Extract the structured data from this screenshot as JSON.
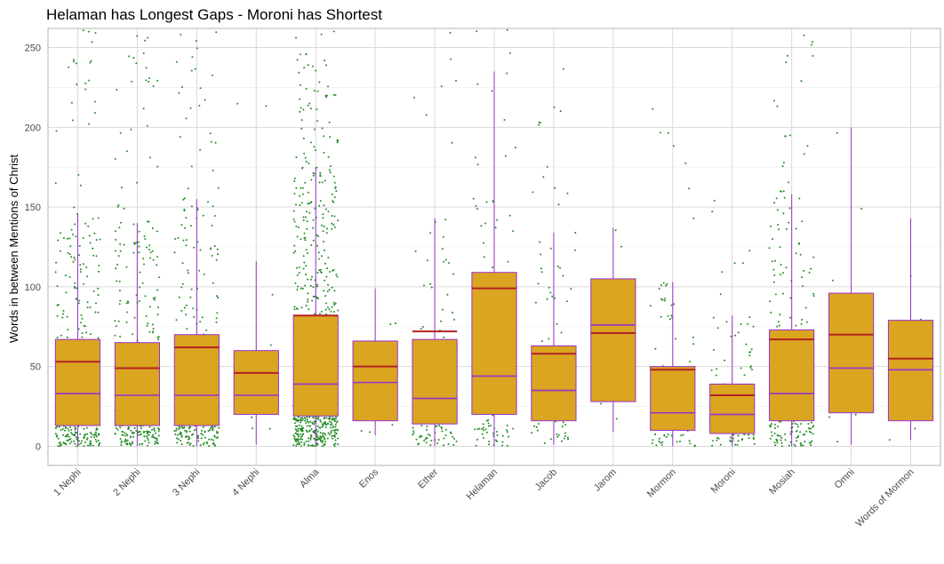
{
  "chart_data": {
    "type": "box",
    "title": "Helaman has Longest Gaps - Moroni has Shortest",
    "xlabel": "",
    "ylabel": "Words in between Mentions of Christ",
    "ylim": [
      -12,
      262
    ],
    "yticks": [
      0,
      50,
      100,
      150,
      200,
      250
    ],
    "grid": true,
    "categories": [
      "1 Nephi",
      "2 Nephi",
      "3 Nephi",
      "4 Nephi",
      "Alma",
      "Enos",
      "Ether",
      "Helaman",
      "Jacob",
      "Jarom",
      "Mormon",
      "Moroni",
      "Mosiah",
      "Omni",
      "Words of Mormon"
    ],
    "boxes": [
      {
        "q1": 13,
        "median": 33,
        "q3": 67,
        "mean": 53,
        "whisker_low": 0,
        "whisker_high": 146,
        "points": 420
      },
      {
        "q1": 13,
        "median": 32,
        "q3": 65,
        "mean": 49,
        "whisker_low": 0,
        "whisker_high": 140,
        "points": 400
      },
      {
        "q1": 13,
        "median": 32,
        "q3": 70,
        "mean": 62,
        "whisker_low": 0,
        "whisker_high": 155,
        "points": 360
      },
      {
        "q1": 20,
        "median": 32,
        "q3": 60,
        "mean": 46,
        "whisker_low": 1,
        "whisker_high": 116,
        "points": 15
      },
      {
        "q1": 19,
        "median": 39,
        "q3": 82,
        "mean": 82,
        "whisker_low": 0,
        "whisker_high": 175,
        "points": 900
      },
      {
        "q1": 16,
        "median": 40,
        "q3": 66,
        "mean": 50,
        "whisker_low": 7,
        "whisker_high": 99,
        "points": 6
      },
      {
        "q1": 14,
        "median": 30,
        "q3": 67,
        "mean": 72,
        "whisker_low": 0,
        "whisker_high": 143,
        "points": 150
      },
      {
        "q1": 20,
        "median": 44,
        "q3": 109,
        "mean": 99,
        "whisker_low": 0,
        "whisker_high": 235,
        "points": 150
      },
      {
        "q1": 16,
        "median": 35,
        "q3": 63,
        "mean": 58,
        "whisker_low": 1,
        "whisker_high": 134,
        "points": 110
      },
      {
        "q1": 28,
        "median": 76,
        "q3": 105,
        "mean": 71,
        "whisker_low": 9,
        "whisker_high": 137,
        "points": 5
      },
      {
        "q1": 10,
        "median": 21,
        "q3": 50,
        "mean": 48,
        "whisker_low": 0,
        "whisker_high": 103,
        "points": 110
      },
      {
        "q1": 8,
        "median": 20,
        "q3": 39,
        "mean": 32,
        "whisker_low": 0,
        "whisker_high": 82,
        "points": 110
      },
      {
        "q1": 16,
        "median": 33,
        "q3": 73,
        "mean": 67,
        "whisker_low": 0,
        "whisker_high": 158,
        "points": 300
      },
      {
        "q1": 21,
        "median": 49,
        "q3": 96,
        "mean": 70,
        "whisker_low": 1,
        "whisker_high": 200,
        "points": 14
      },
      {
        "q1": 16,
        "median": 48,
        "q3": 79,
        "mean": 55,
        "whisker_low": 4,
        "whisker_high": 143,
        "points": 8
      }
    ],
    "colors": {
      "box_fill": "#DAA520",
      "box_border": "#9932CC",
      "median_line": "#9932CC",
      "mean_line": "#B22222",
      "points": "#228B22",
      "grid": "#D9D9D9",
      "panel_border": "#B3B3B3"
    }
  }
}
